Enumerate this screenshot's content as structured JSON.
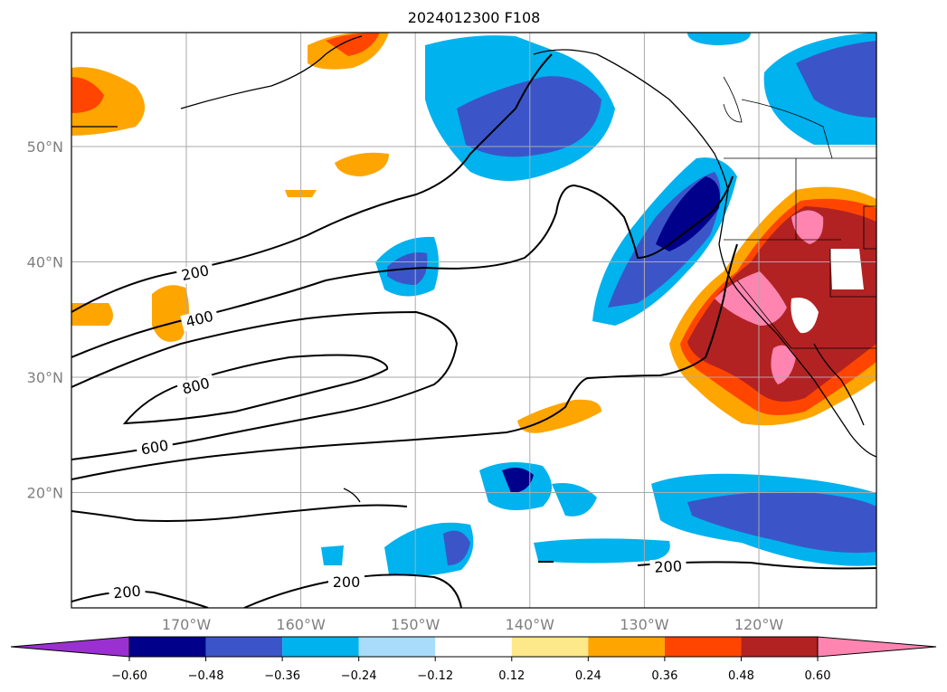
{
  "title": "2024012300 F108",
  "map": {
    "lon_labels": [
      {
        "lon": -170,
        "text": "170°W"
      },
      {
        "lon": -160,
        "text": "160°W"
      },
      {
        "lon": -150,
        "text": "150°W"
      },
      {
        "lon": -140,
        "text": "140°W"
      },
      {
        "lon": -130,
        "text": "130°W"
      },
      {
        "lon": -120,
        "text": "120°W"
      }
    ],
    "lat_labels": [
      {
        "lat": 50,
        "text": "50°N"
      },
      {
        "lat": 40,
        "text": "40°N"
      },
      {
        "lat": 30,
        "text": "30°N"
      },
      {
        "lat": 20,
        "text": "20°N"
      }
    ],
    "contour_labels": [
      "200",
      "400",
      "600",
      "800",
      "200",
      "200",
      "200"
    ]
  },
  "colorbar": {
    "ticks": [
      "−0.60",
      "−0.48",
      "−0.36",
      "−0.24",
      "−0.12",
      "0.12",
      "0.24",
      "0.36",
      "0.48",
      "0.60"
    ],
    "colors": [
      "#9b30d0",
      "#00008b",
      "#3b55c9",
      "#00b2ee",
      "#a8dcfa",
      "#ffffff",
      "#fde88a",
      "#ffa500",
      "#ff4500",
      "#b22222",
      "#ff85b0"
    ]
  }
}
